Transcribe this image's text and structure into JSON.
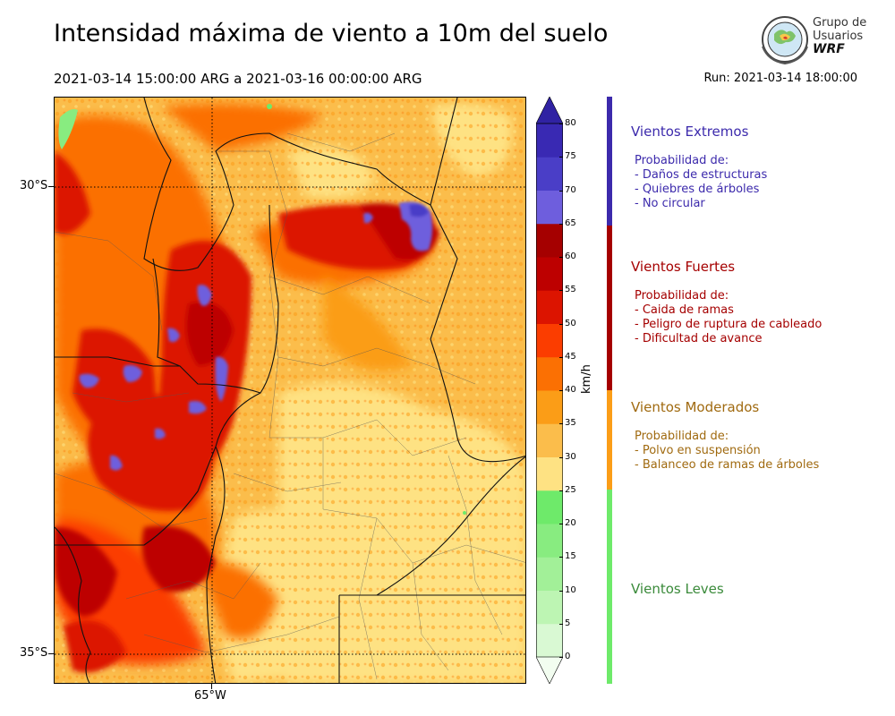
{
  "header": {
    "title": "Intensidad máxima de viento a 10m del suelo",
    "period": "2021-03-14 15:00:00 ARG  a  2021-03-16 00:00:00 ARG",
    "run": "Run: 2021-03-14 18:00:00"
  },
  "logo": {
    "line1": "Grupo de",
    "line2": "Usuarios",
    "line3": "WRF"
  },
  "map": {
    "lat_labels": [
      "30°S",
      "35°S"
    ],
    "lon_labels": [
      "65°W"
    ]
  },
  "colorbar": {
    "unit": "km/h",
    "ticks": [
      "0",
      "5",
      "10",
      "15",
      "20",
      "25",
      "30",
      "35",
      "40",
      "45",
      "50",
      "55",
      "60",
      "65",
      "70",
      "75",
      "80"
    ],
    "colors": [
      "#f2fdf0",
      "#d9f9d3",
      "#bdf5b3",
      "#a2f098",
      "#88ec80",
      "#6eea6a",
      "#fee283",
      "#fbbd4b",
      "#fb9d17",
      "#fb7003",
      "#fb3d00",
      "#dc1400",
      "#bd0000",
      "#a50000",
      "#6e5edd",
      "#4a3ec7",
      "#3929b3",
      "#3022a3"
    ]
  },
  "categories": [
    {
      "title": "Vientos Extremos",
      "color": "#3c2aac",
      "text_color": "#3c2aac",
      "lines": [
        "Probabilidad de:",
        "- Daños de estructuras",
        "- Quiebres de árboles",
        "- No circular"
      ]
    },
    {
      "title": "Vientos Fuertes",
      "color": "#a50000",
      "text_color": "#a50000",
      "lines": [
        "Probabilidad de:",
        "- Caida de ramas",
        "- Peligro de ruptura de cableado",
        "- Dificultad de avance"
      ]
    },
    {
      "title": "Vientos Moderados",
      "color": "#fb9d17",
      "text_color": "#a06a10",
      "lines": [
        "Probabilidad de:",
        "- Polvo en suspensión",
        "- Balanceo de ramas de árboles"
      ]
    },
    {
      "title": "Vientos Leves",
      "color": "#6eea6a",
      "text_color": "#3a8a3a",
      "lines": []
    }
  ]
}
